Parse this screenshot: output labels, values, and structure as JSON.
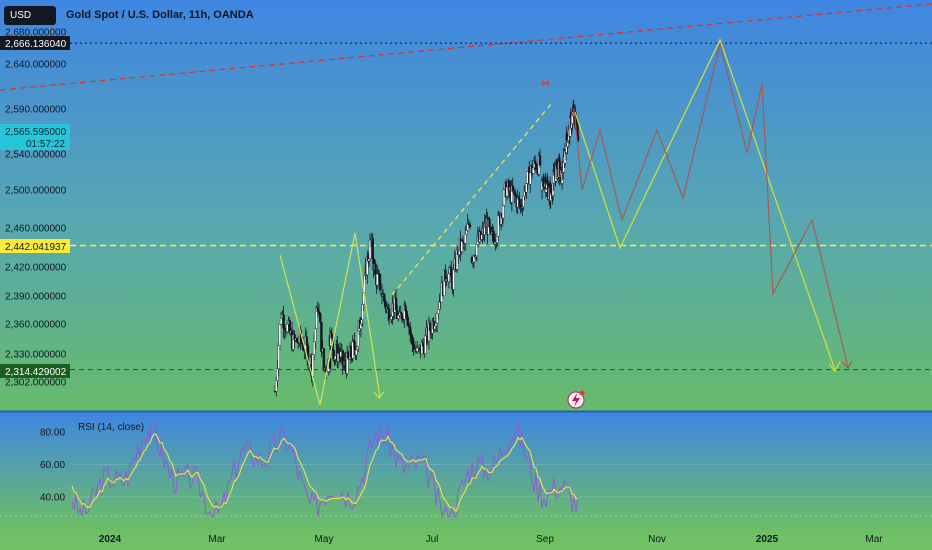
{
  "header": {
    "currency": "USD",
    "title": "Gold Spot / U.S. Dollar, 11h, OANDA"
  },
  "price_labels": {
    "top_line": "2,666.136040",
    "current": "2,565.595000",
    "countdown": "01:57:22",
    "mid_line": "2,442.041937",
    "bottom_line": "2,314.429002"
  },
  "rsi": {
    "title": "RSI (14, close)"
  },
  "colors": {
    "accent_current": "#26c6da",
    "mid_label": "#ffeb3b",
    "top_label": "#131722",
    "bottom_label": "#1b5e20"
  },
  "chart_data": [
    {
      "type": "candlestick",
      "title": "Gold Spot / U.S. Dollar, 11h, OANDA",
      "y_ticks": [
        2680,
        2640,
        2590,
        2540,
        2500,
        2460,
        2420,
        2390,
        2360,
        2330,
        2302
      ],
      "y_tick_labels": [
        "2,680.000000",
        "2,640.000000",
        "2,590.000000",
        "2,540.000000",
        "2,500.000000",
        "2,460.000000",
        "2,420.000000",
        "2,390.000000",
        "2,360.000000",
        "2,330.000000",
        "2,302.000000"
      ],
      "horizontal_lines": [
        2666.13604,
        2442.041937,
        2314.429002
      ],
      "path_green_upper": [
        [
          2437,
          2307
        ],
        [
          2456,
          2378
        ],
        [
          2493,
          2382
        ],
        [
          2520,
          2444
        ],
        [
          2551,
          2634
        ],
        [
          2568,
          2530
        ],
        [
          2590,
          2360
        ]
      ],
      "path_green_lower": [
        [
          2437,
          2462
        ],
        [
          2456,
          2390
        ]
      ],
      "last_price": 2565.595,
      "x_axis_labels": [
        "2024",
        "Mar",
        "May",
        "Jul",
        "Sep",
        "Nov",
        "2025",
        "Mar"
      ],
      "price_series": [
        [
          2293,
          2372,
          2356,
          2341,
          2344,
          2337,
          2318,
          2381,
          2315,
          2324
        ],
        [
          2349,
          2329,
          2332,
          2317,
          2322,
          2334,
          2341,
          2375,
          2421,
          2446,
          2411,
          2402
        ],
        [
          2393,
          2373,
          2380,
          2363,
          2383,
          2343,
          2330,
          2338,
          2352,
          2367,
          2391,
          2416,
          2405,
          2438,
          2443,
          2469
        ],
        [
          2430,
          2443,
          2450,
          2466,
          2447,
          2456,
          2476,
          2503,
          2496,
          2492,
          2482,
          2505,
          2520,
          2528,
          2528
        ],
        [
          2500,
          2512,
          2506,
          2497,
          2498,
          2515,
          2522,
          2525,
          2513,
          2528,
          2552,
          2560,
          2574,
          2586,
          2577,
          2565
        ]
      ]
    },
    {
      "type": "line",
      "title": "RSI (14, close)",
      "y_ticks": [
        80,
        60,
        40
      ],
      "y_tick_labels": [
        "80.00",
        "60.00",
        "40.00"
      ]
    }
  ]
}
